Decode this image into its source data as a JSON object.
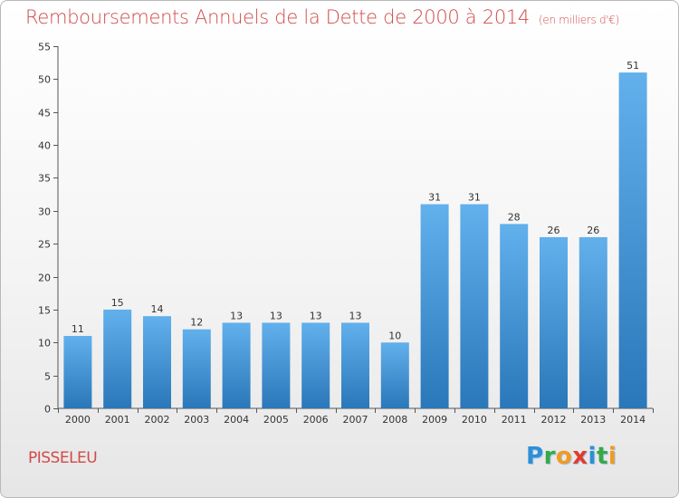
{
  "title": "Remboursements Annuels de la Dette de 2000 à 2014",
  "unit": "(en milliers d'€)",
  "commune": "PISSELEU",
  "logo": {
    "letters": [
      {
        "ch": "P",
        "color": "#2d8fd6"
      },
      {
        "ch": "r",
        "color": "#39a846"
      },
      {
        "ch": "o",
        "color": "#f39a1e"
      },
      {
        "ch": "x",
        "color": "#e23b2e"
      },
      {
        "ch": "i",
        "color": "#2d8fd6"
      },
      {
        "ch": "t",
        "color": "#39a846"
      },
      {
        "ch": "i",
        "color": "#f39a1e"
      }
    ]
  },
  "colors": {
    "bar_light": "#62b0ec",
    "bar_dark": "#2a77b9",
    "title": "#d14a4a"
  },
  "chart_data": {
    "type": "bar",
    "title": "Remboursements Annuels de la Dette de 2000 à 2014",
    "ylabel": "en milliers d'€",
    "xlabel": "",
    "categories": [
      "2000",
      "2001",
      "2002",
      "2003",
      "2004",
      "2005",
      "2006",
      "2007",
      "2008",
      "2009",
      "2010",
      "2011",
      "2012",
      "2013",
      "2014"
    ],
    "values": [
      11,
      15,
      14,
      12,
      13,
      13,
      13,
      13,
      10,
      31,
      31,
      28,
      26,
      26,
      51
    ],
    "ylim": [
      0,
      55
    ],
    "yticks": [
      0,
      5,
      10,
      15,
      20,
      25,
      30,
      35,
      40,
      45,
      50,
      55
    ],
    "grid": false,
    "legend": "none"
  }
}
